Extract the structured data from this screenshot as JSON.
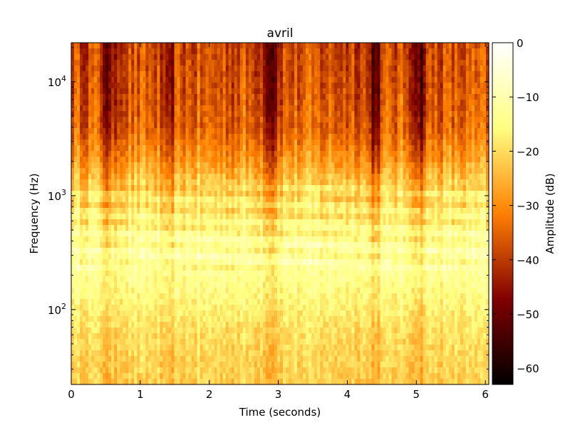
{
  "chart_data": {
    "type": "heatmap",
    "title": "avril",
    "xlabel": "Time (seconds)",
    "ylabel": "Frequency (Hz)",
    "xlim": [
      0,
      6.05
    ],
    "ylim": [
      22,
      22050
    ],
    "yscale": "log",
    "x_ticks": [
      {
        "value": 0,
        "label": "0"
      },
      {
        "value": 1,
        "label": "1"
      },
      {
        "value": 2,
        "label": "2"
      },
      {
        "value": 3,
        "label": "3"
      },
      {
        "value": 4,
        "label": "4"
      },
      {
        "value": 5,
        "label": "5"
      },
      {
        "value": 6,
        "label": "6"
      }
    ],
    "y_ticks": [
      {
        "value": 100,
        "base": "10",
        "exp": "2"
      },
      {
        "value": 1000,
        "base": "10",
        "exp": "3"
      },
      {
        "value": 10000,
        "base": "10",
        "exp": "4"
      }
    ],
    "colorbar": {
      "label": "Amplitude (dB)",
      "colormap": "afmhot",
      "range": [
        -63,
        0
      ],
      "ticks": [
        {
          "value": 0,
          "label": "0"
        },
        {
          "value": -10,
          "label": "−10"
        },
        {
          "value": -20,
          "label": "−20"
        },
        {
          "value": -30,
          "label": "−30"
        },
        {
          "value": -40,
          "label": "−40"
        },
        {
          "value": -50,
          "label": "−50"
        },
        {
          "value": -60,
          "label": "−60"
        }
      ]
    },
    "intensity_profile": {
      "frequency_hz": [
        22,
        60,
        150,
        250,
        400,
        700,
        1100,
        2000,
        4000,
        10000,
        22050
      ],
      "typical_db": [
        -22,
        -20,
        -15,
        -12,
        -13,
        -18,
        -20,
        -28,
        -35,
        -37,
        -38
      ]
    },
    "quiet_times_s": [
      0.55,
      1.4,
      2.9,
      4.4,
      5.05
    ]
  }
}
